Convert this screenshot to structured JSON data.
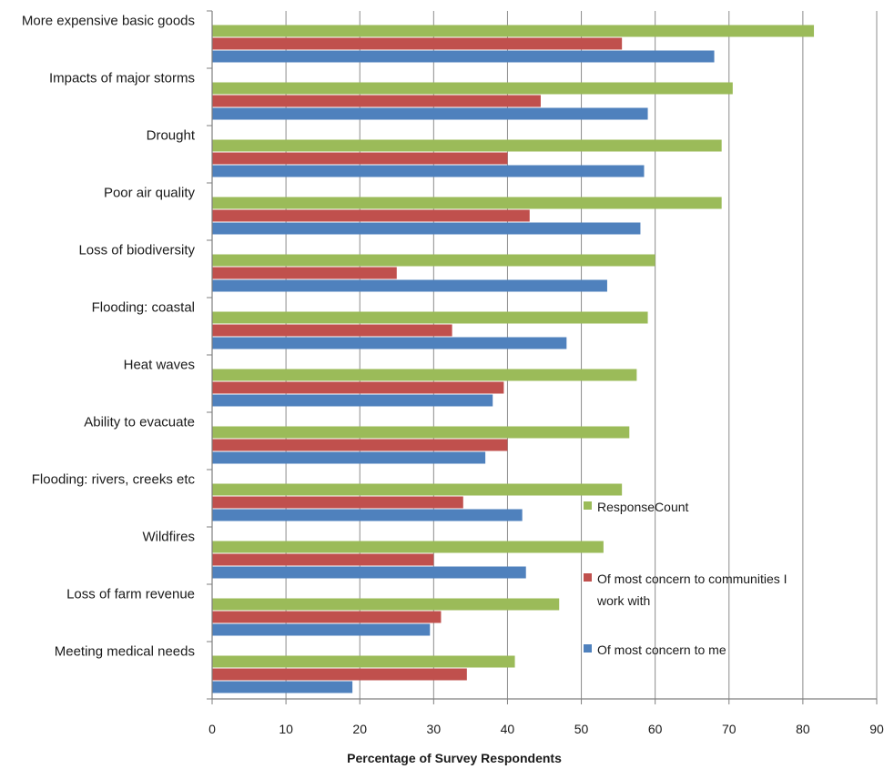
{
  "chart_data": {
    "type": "bar",
    "orientation": "horizontal",
    "title": "",
    "xlabel": "Percentage of Survey Respondents",
    "ylabel": "",
    "xlim": [
      0,
      90
    ],
    "xticks": [
      "0",
      "10",
      "20",
      "30",
      "40",
      "50",
      "60",
      "70",
      "80",
      "90"
    ],
    "grid": true,
    "legend_position": "lower-right",
    "categories": [
      "More expensive basic goods",
      "Impacts of major storms",
      "Drought",
      "Poor air quality",
      "Loss of biodiversity",
      "Flooding: coastal",
      "Heat waves",
      "Ability to evacuate",
      "Flooding: rivers, creeks etc",
      "Wildfires",
      "Loss of farm revenue",
      "Meeting medical needs"
    ],
    "series": [
      {
        "name": "ResponseCount",
        "color": "#9bbb59",
        "values": [
          81.5,
          70.5,
          69,
          69,
          60,
          59,
          57.5,
          56.5,
          55.5,
          53,
          47,
          41
        ]
      },
      {
        "name": "Of most concern to communities I work with",
        "legend_lines": [
          "Of most concern to communities I",
          "work with"
        ],
        "color": "#c0504d",
        "values": [
          55.5,
          44.5,
          40,
          43,
          25,
          32.5,
          39.5,
          40,
          34,
          30,
          31,
          34.5
        ]
      },
      {
        "name": "Of most concern to me",
        "color": "#4f81bd",
        "values": [
          68,
          59,
          58.5,
          58,
          53.5,
          48,
          38,
          37,
          42,
          42.5,
          29.5,
          19
        ]
      }
    ]
  }
}
